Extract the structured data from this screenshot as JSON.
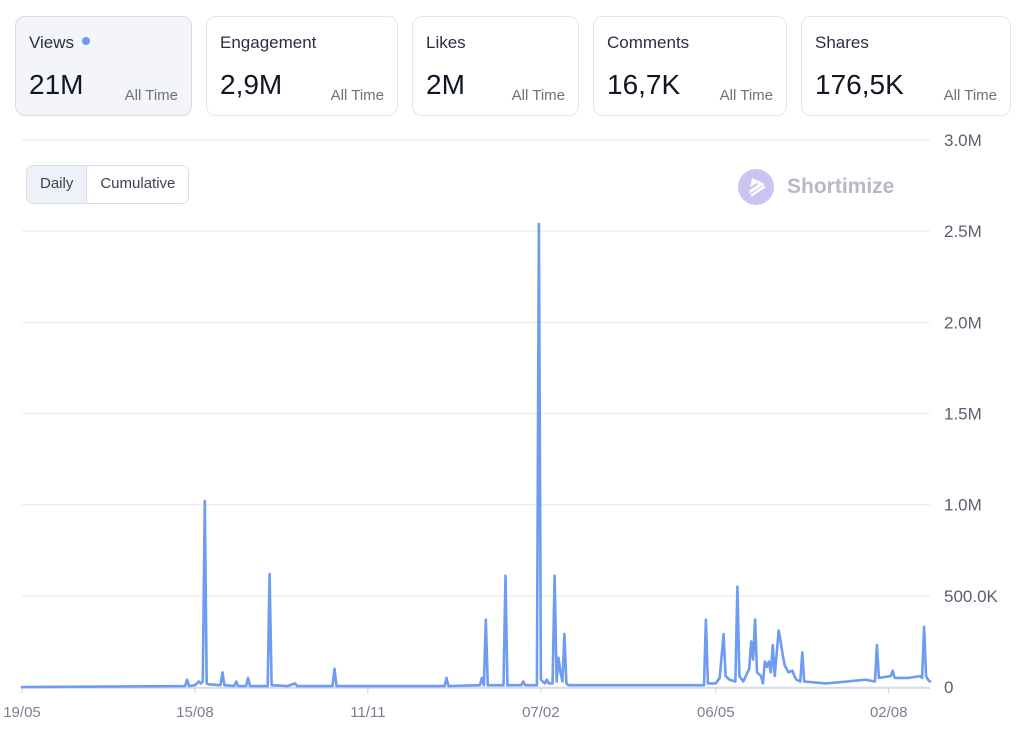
{
  "metrics": [
    {
      "label": "Views",
      "value": "21M",
      "period": "All Time",
      "active": true
    },
    {
      "label": "Engagement",
      "value": "2,9M",
      "period": "All Time",
      "active": false
    },
    {
      "label": "Likes",
      "value": "2M",
      "period": "All Time",
      "active": false
    },
    {
      "label": "Comments",
      "value": "16,7K",
      "period": "All Time",
      "active": false
    },
    {
      "label": "Shares",
      "value": "176,5K",
      "period": "All Time",
      "active": false
    }
  ],
  "view_toggle": {
    "options": [
      "Daily",
      "Cumulative"
    ],
    "selected": "Daily"
  },
  "brand": {
    "name": "Shortimize"
  },
  "colors": {
    "line": "#6d9cf2",
    "active_dot": "#6d9cf2",
    "grid": "#e6e9f2",
    "logo": "#c9c4f2"
  },
  "chart_data": {
    "type": "line",
    "title": "",
    "xlabel": "",
    "ylabel": "",
    "x_tick_labels": [
      "19/05",
      "15/08",
      "11/11",
      "07/02",
      "06/05",
      "02/08"
    ],
    "y_tick_labels": [
      "3.0M",
      "2.5M",
      "2.0M",
      "1.5M",
      "1.0M",
      "500.0K",
      "0"
    ],
    "ylim": [
      0,
      3000000
    ],
    "y_axis_position": "right",
    "grid": true,
    "series": [
      {
        "points": [
          [
            "2023-05-19",
            0
          ],
          [
            "2023-08-10",
            5000
          ],
          [
            "2023-08-11",
            40000
          ],
          [
            "2023-08-12",
            5000
          ],
          [
            "2023-08-15",
            10000
          ],
          [
            "2023-08-17",
            30000
          ],
          [
            "2023-08-18",
            20000
          ],
          [
            "2023-08-19",
            30000
          ],
          [
            "2023-08-20",
            1020000
          ],
          [
            "2023-08-21",
            20000
          ],
          [
            "2023-08-22",
            15000
          ],
          [
            "2023-08-28",
            10000
          ],
          [
            "2023-08-29",
            80000
          ],
          [
            "2023-08-30",
            10000
          ],
          [
            "2023-09-04",
            5000
          ],
          [
            "2023-09-05",
            30000
          ],
          [
            "2023-09-06",
            5000
          ],
          [
            "2023-09-10",
            5000
          ],
          [
            "2023-09-11",
            50000
          ],
          [
            "2023-09-12",
            5000
          ],
          [
            "2023-09-21",
            5000
          ],
          [
            "2023-09-22",
            620000
          ],
          [
            "2023-09-23",
            10000
          ],
          [
            "2023-10-01",
            5000
          ],
          [
            "2023-10-05",
            20000
          ],
          [
            "2023-10-06",
            5000
          ],
          [
            "2023-10-24",
            5000
          ],
          [
            "2023-10-25",
            100000
          ],
          [
            "2023-10-26",
            5000
          ],
          [
            "2023-12-20",
            5000
          ],
          [
            "2023-12-21",
            50000
          ],
          [
            "2023-12-22",
            5000
          ],
          [
            "2024-01-07",
            10000
          ],
          [
            "2024-01-08",
            50000
          ],
          [
            "2024-01-09",
            10000
          ],
          [
            "2024-01-10",
            370000
          ],
          [
            "2024-01-11",
            10000
          ],
          [
            "2024-01-19",
            10000
          ],
          [
            "2024-01-20",
            610000
          ],
          [
            "2024-01-21",
            10000
          ],
          [
            "2024-01-28",
            10000
          ],
          [
            "2024-01-29",
            30000
          ],
          [
            "2024-01-30",
            10000
          ],
          [
            "2024-02-05",
            10000
          ],
          [
            "2024-02-06",
            2540000
          ],
          [
            "2024-02-07",
            40000
          ],
          [
            "2024-02-09",
            20000
          ],
          [
            "2024-02-10",
            40000
          ],
          [
            "2024-02-11",
            20000
          ],
          [
            "2024-02-13",
            20000
          ],
          [
            "2024-02-14",
            610000
          ],
          [
            "2024-02-15",
            30000
          ],
          [
            "2024-02-16",
            160000
          ],
          [
            "2024-02-17",
            80000
          ],
          [
            "2024-02-18",
            30000
          ],
          [
            "2024-02-19",
            290000
          ],
          [
            "2024-02-20",
            20000
          ],
          [
            "2024-02-21",
            10000
          ],
          [
            "2024-04-30",
            10000
          ],
          [
            "2024-05-01",
            370000
          ],
          [
            "2024-05-02",
            20000
          ],
          [
            "2024-05-06",
            20000
          ],
          [
            "2024-05-08",
            50000
          ],
          [
            "2024-05-10",
            290000
          ],
          [
            "2024-05-11",
            60000
          ],
          [
            "2024-05-13",
            40000
          ],
          [
            "2024-05-16",
            30000
          ],
          [
            "2024-05-17",
            550000
          ],
          [
            "2024-05-18",
            60000
          ],
          [
            "2024-05-20",
            30000
          ],
          [
            "2024-05-23",
            100000
          ],
          [
            "2024-05-24",
            250000
          ],
          [
            "2024-05-25",
            150000
          ],
          [
            "2024-05-26",
            370000
          ],
          [
            "2024-05-27",
            80000
          ],
          [
            "2024-05-29",
            60000
          ],
          [
            "2024-05-30",
            20000
          ],
          [
            "2024-05-31",
            140000
          ],
          [
            "2024-06-01",
            110000
          ],
          [
            "2024-06-02",
            140000
          ],
          [
            "2024-06-03",
            80000
          ],
          [
            "2024-06-04",
            230000
          ],
          [
            "2024-06-05",
            60000
          ],
          [
            "2024-06-07",
            310000
          ],
          [
            "2024-06-08",
            250000
          ],
          [
            "2024-06-09",
            180000
          ],
          [
            "2024-06-10",
            120000
          ],
          [
            "2024-06-12",
            80000
          ],
          [
            "2024-06-14",
            90000
          ],
          [
            "2024-06-15",
            60000
          ],
          [
            "2024-06-16",
            40000
          ],
          [
            "2024-06-18",
            30000
          ],
          [
            "2024-06-19",
            190000
          ],
          [
            "2024-06-20",
            30000
          ],
          [
            "2024-07-01",
            20000
          ],
          [
            "2024-07-12",
            30000
          ],
          [
            "2024-07-21",
            40000
          ],
          [
            "2024-07-26",
            30000
          ],
          [
            "2024-07-27",
            230000
          ],
          [
            "2024-07-28",
            50000
          ],
          [
            "2024-08-03",
            60000
          ],
          [
            "2024-08-04",
            90000
          ],
          [
            "2024-08-05",
            50000
          ],
          [
            "2024-08-12",
            50000
          ],
          [
            "2024-08-18",
            60000
          ],
          [
            "2024-08-19",
            50000
          ],
          [
            "2024-08-20",
            330000
          ],
          [
            "2024-08-21",
            60000
          ],
          [
            "2024-08-22",
            40000
          ],
          [
            "2024-08-23",
            30000
          ]
        ]
      }
    ]
  }
}
